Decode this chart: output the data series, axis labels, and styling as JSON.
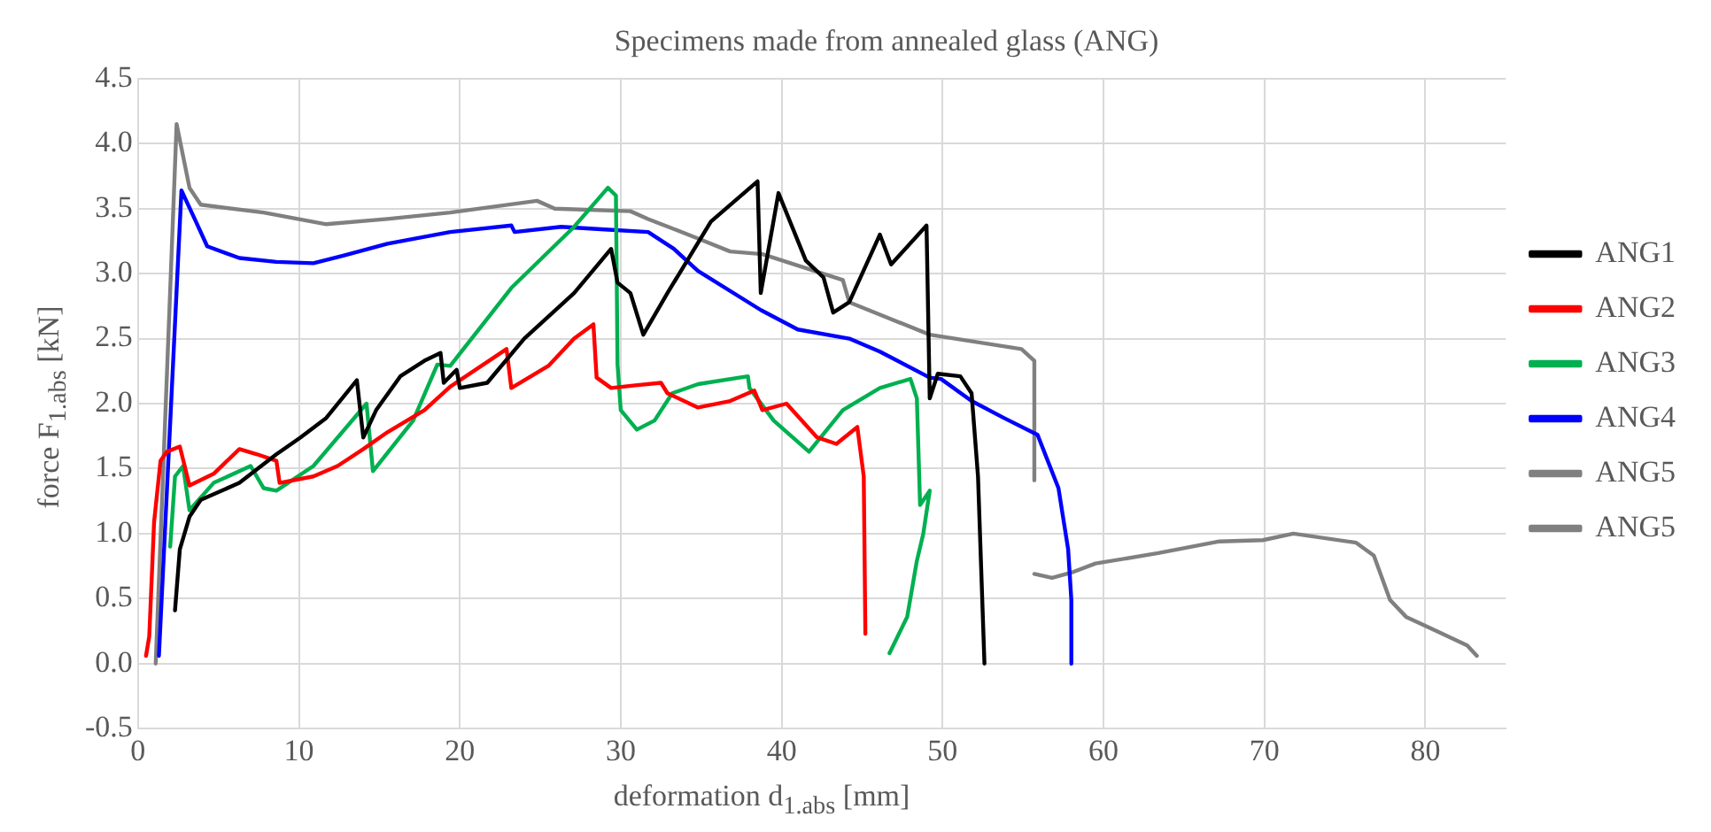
{
  "chart_data": {
    "type": "line",
    "title": "Specimens made from annealed glass (ANG)",
    "xlabel": "deformation d$_{1.abs}$ [mm]",
    "ylabel": "force F$_{1.abs}$ [kN]",
    "xlim": [
      0,
      85
    ],
    "xticks": [
      0,
      10,
      20,
      30,
      40,
      50,
      60,
      70,
      80
    ],
    "ylim": [
      -0.5,
      4.5
    ],
    "yticks": [
      -0.5,
      {
        "value": 0,
        "label": "0.0"
      },
      0.5,
      {
        "value": 1,
        "label": "1.0"
      },
      1.5,
      {
        "value": 2,
        "label": "2.0"
      },
      2.5,
      {
        "value": 3,
        "label": "3.0"
      },
      3.5,
      {
        "value": 4,
        "label": "4.0"
      },
      4.5
    ],
    "grid": true,
    "legend": "right",
    "marker": "none",
    "line_style": "solid",
    "series": [
      {
        "name": "ANG1",
        "color": "#000000",
        "x": [
          2.3,
          2.6,
          3.2,
          3.9,
          6.3,
          8.6,
          10.1,
          11.7,
          13.6,
          14.0,
          14.8,
          16.3,
          17.8,
          18.8,
          19.0,
          19.8,
          20.0,
          21.7,
          24.0,
          27.1,
          29.4,
          29.8,
          30.6,
          31.4,
          32.9,
          35.6,
          38.5,
          38.7,
          39.8,
          41.5,
          42.6,
          43.2,
          44.2,
          46.1,
          46.8,
          49.0,
          49.2,
          49.7,
          51.1,
          51.8,
          52.2,
          52.6
        ],
        "values": [
          0.41,
          0.88,
          1.13,
          1.26,
          1.39,
          1.61,
          1.74,
          1.89,
          2.18,
          1.74,
          1.95,
          2.21,
          2.33,
          2.39,
          2.16,
          2.26,
          2.12,
          2.16,
          2.5,
          2.85,
          3.19,
          2.93,
          2.85,
          2.53,
          2.85,
          3.4,
          3.71,
          2.85,
          3.62,
          3.1,
          2.97,
          2.7,
          2.78,
          3.3,
          3.07,
          3.37,
          2.04,
          2.23,
          2.21,
          2.08,
          1.44,
          0
        ]
      },
      {
        "name": "ANG2",
        "color": "#ff0000",
        "x": [
          0.5,
          0.7,
          1.0,
          1.4,
          1.8,
          2.6,
          3.2,
          4.7,
          6.3,
          7.4,
          8.6,
          8.8,
          10.9,
          12.4,
          14.0,
          15.5,
          17.8,
          19.4,
          22.9,
          23.2,
          25.5,
          27.1,
          28.3,
          28.5,
          29.4,
          30.9,
          32.5,
          32.9,
          34.8,
          36.8,
          38.3,
          38.8,
          40.3,
          42.2,
          43.4,
          44.7,
          45.1,
          45.2
        ],
        "values": [
          0.06,
          0.21,
          1.09,
          1.56,
          1.63,
          1.67,
          1.37,
          1.46,
          1.65,
          1.61,
          1.56,
          1.39,
          1.44,
          1.52,
          1.65,
          1.78,
          1.95,
          2.13,
          2.42,
          2.12,
          2.29,
          2.5,
          2.61,
          2.2,
          2.12,
          2.14,
          2.16,
          2.08,
          1.97,
          2.02,
          2.1,
          1.95,
          2.0,
          1.74,
          1.69,
          1.82,
          1.44,
          0.23
        ]
      },
      {
        "name": "ANG3",
        "color": "#00b050",
        "x": [
          2.0,
          2.3,
          2.8,
          3.2,
          4.7,
          7.0,
          7.8,
          8.6,
          10.9,
          14.2,
          14.6,
          17.1,
          18.6,
          19.4,
          23.2,
          27.1,
          29.2,
          29.7,
          29.8,
          30.0,
          31.0,
          32.1,
          33.2,
          34.8,
          37.9,
          38.0,
          39.5,
          41.7,
          43.8,
          46.1,
          48.0,
          48.4,
          48.6,
          49.2,
          48.8,
          48.4,
          47.8,
          46.7
        ],
        "values": [
          0.9,
          1.44,
          1.52,
          1.18,
          1.39,
          1.52,
          1.35,
          1.33,
          1.52,
          2.0,
          1.48,
          1.87,
          2.3,
          2.29,
          2.89,
          3.36,
          3.66,
          3.6,
          2.3,
          1.95,
          1.8,
          1.87,
          2.08,
          2.15,
          2.21,
          2.12,
          1.87,
          1.63,
          1.95,
          2.12,
          2.19,
          2.04,
          1.22,
          1.33,
          1.0,
          0.79,
          0.36,
          0.08
        ]
      },
      {
        "name": "ANG4",
        "color": "#0000ff",
        "x": [
          1.3,
          2.7,
          3.6,
          4.3,
          6.3,
          8.6,
          10.9,
          12.8,
          15.5,
          19.4,
          23.2,
          23.4,
          26.3,
          29.0,
          31.7,
          33.3,
          34.8,
          38.7,
          41.0,
          44.2,
          46.1,
          49.2,
          49.9,
          51.8,
          53.8,
          55.9,
          57.2,
          57.8,
          58.0,
          58.0
        ],
        "values": [
          0.06,
          3.64,
          3.4,
          3.21,
          3.12,
          3.09,
          3.08,
          3.14,
          3.23,
          3.32,
          3.37,
          3.32,
          3.36,
          3.34,
          3.32,
          3.19,
          3.02,
          2.72,
          2.57,
          2.5,
          2.4,
          2.2,
          2.19,
          2.02,
          1.89,
          1.76,
          1.35,
          0.88,
          0.49,
          0
        ]
      },
      {
        "name": "ANG5",
        "color": "#808080",
        "x": [
          1.1,
          2.4,
          3.2,
          3.9,
          7.8,
          11.7,
          15.5,
          19.4,
          24.8,
          25.9,
          30.6,
          31.7,
          34.8,
          36.8,
          38.8,
          43.8,
          44.2,
          49.2,
          54.9,
          55.7,
          55.7
        ],
        "values": [
          0,
          4.15,
          3.66,
          3.53,
          3.47,
          3.38,
          3.42,
          3.47,
          3.56,
          3.5,
          3.48,
          3.42,
          3.27,
          3.17,
          3.15,
          2.95,
          2.78,
          2.53,
          2.42,
          2.33,
          1.41
        ]
      },
      {
        "name": "ANG5",
        "color": "#808080",
        "x": [
          55.7,
          56.8,
          58.0,
          59.5,
          63.4,
          67.2,
          69.9,
          71.8,
          75.7,
          76.8,
          77.8,
          78.8,
          80.7,
          82.6,
          83.2
        ],
        "values": [
          0.69,
          0.66,
          0.7,
          0.77,
          0.85,
          0.94,
          0.95,
          1.0,
          0.93,
          0.83,
          0.49,
          0.36,
          0.25,
          0.14,
          0.06
        ]
      }
    ]
  }
}
